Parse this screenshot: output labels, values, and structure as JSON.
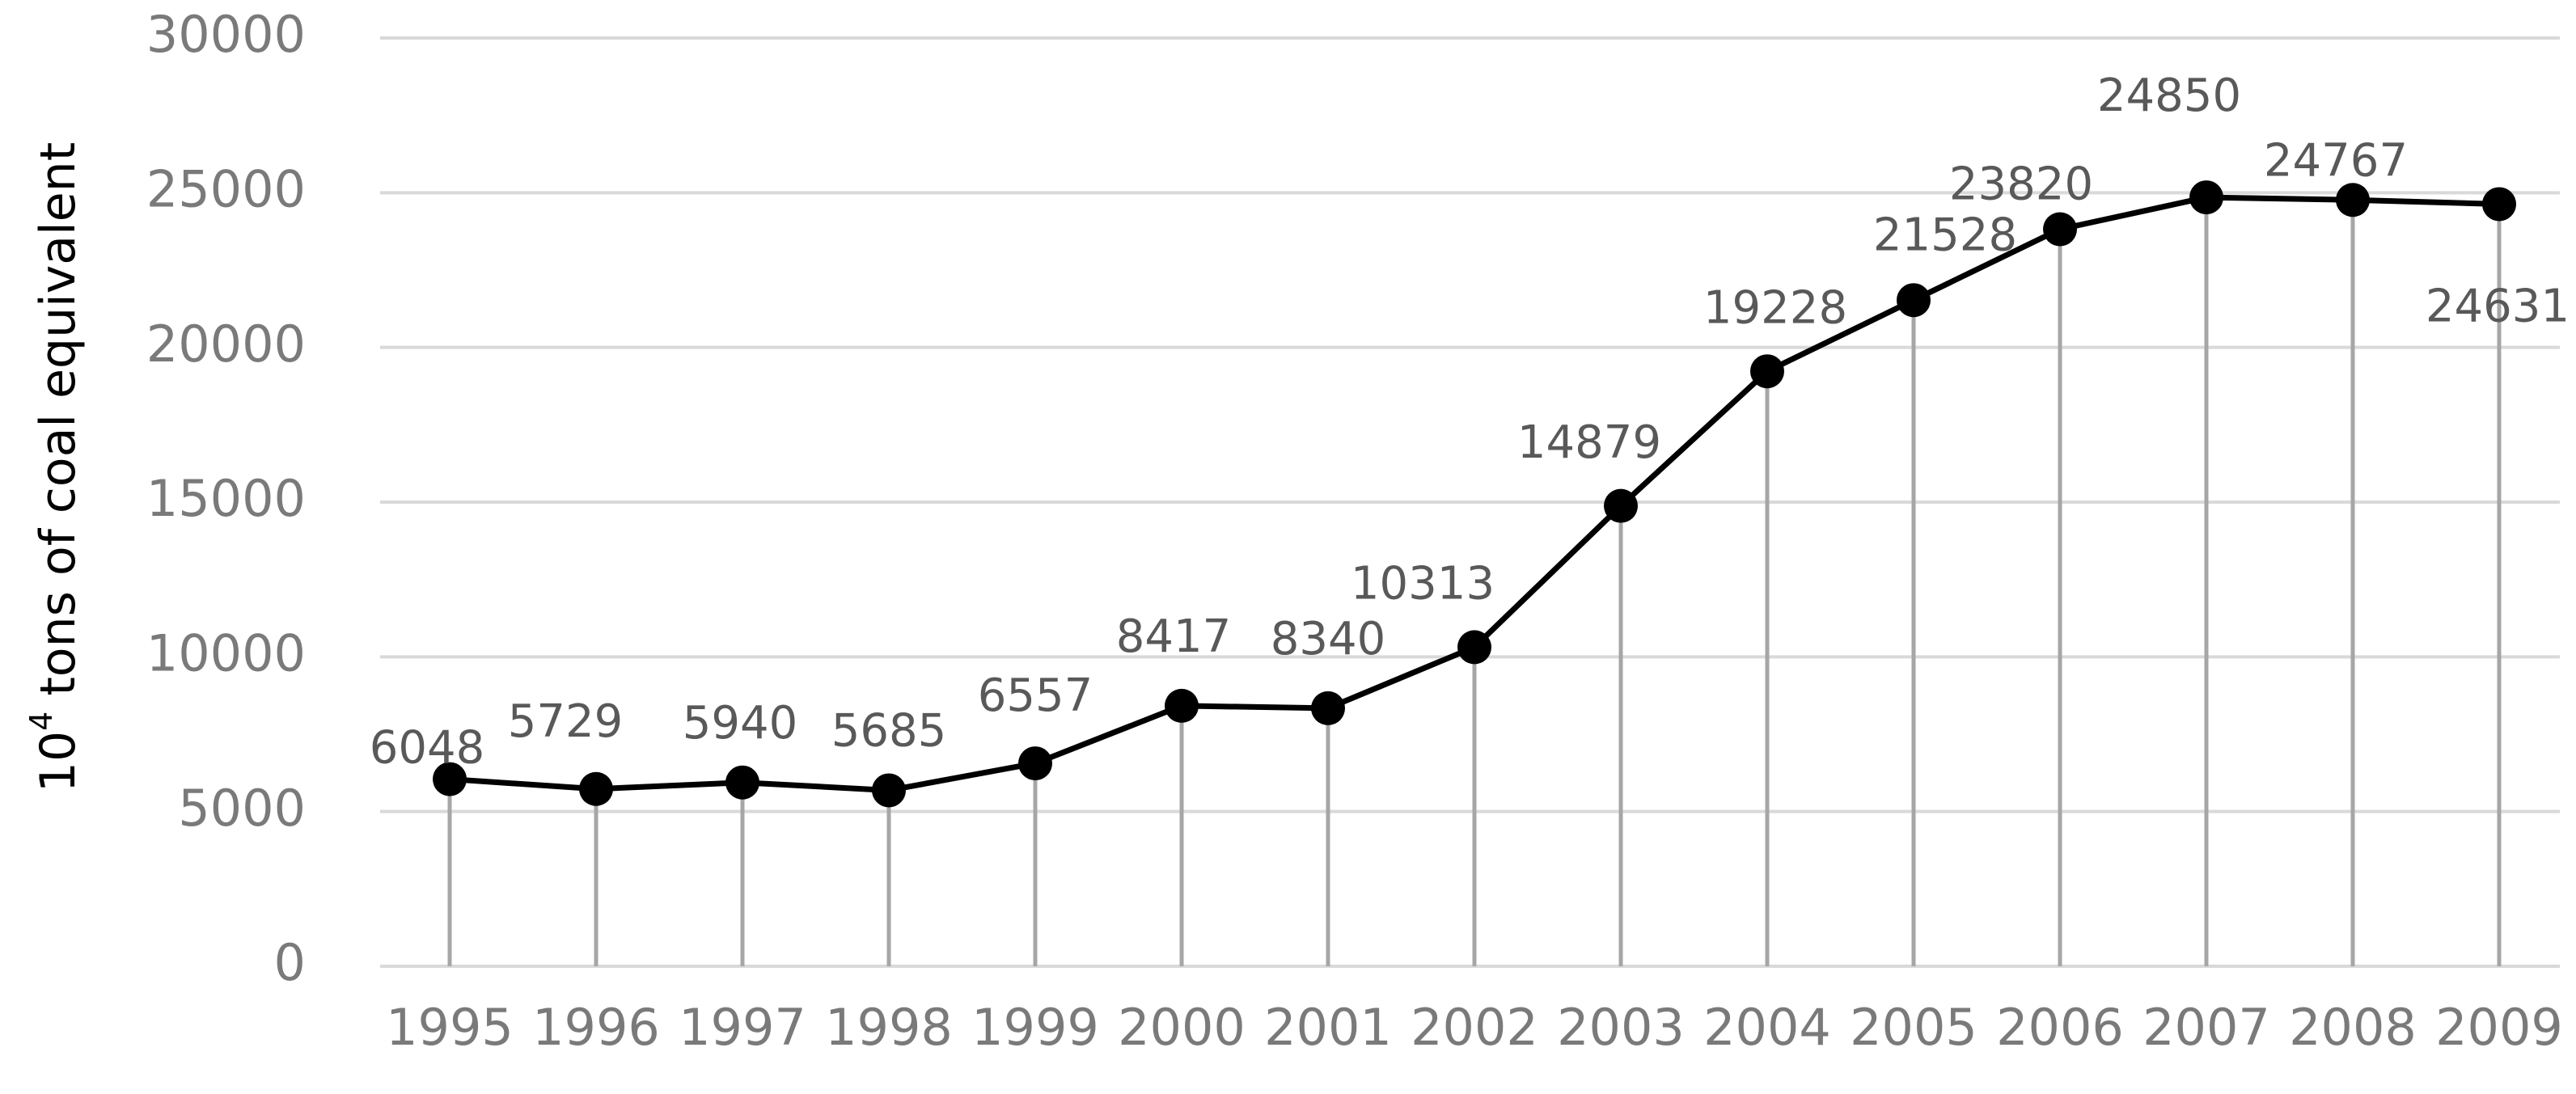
{
  "chart_data": {
    "type": "line",
    "title": "",
    "xlabel": "",
    "ylabel": {
      "base": "10",
      "exponent": "4",
      "rest": " tons of coal equivalent"
    },
    "categories": [
      "1995",
      "1996",
      "1997",
      "1998",
      "1999",
      "2000",
      "2001",
      "2002",
      "2003",
      "2004",
      "2005",
      "2006",
      "2007",
      "2008",
      "2009"
    ],
    "series": [
      {
        "values": [
          6048,
          5729,
          5940,
          5685,
          6557,
          8417,
          8340,
          10313,
          14879,
          19228,
          21528,
          23820,
          24850,
          24767,
          24631
        ]
      }
    ],
    "data_labels": [
      "6048",
      "5729",
      "5940",
      "5685",
      "6557",
      "8417",
      "8340",
      "10313",
      "14879",
      "19228",
      "21528",
      "23820",
      "24850",
      "24767",
      "24631"
    ],
    "ylim": [
      0,
      30000
    ],
    "yticks": [
      0,
      5000,
      10000,
      15000,
      20000,
      25000,
      30000
    ],
    "ytick_labels": [
      "0",
      "5000",
      "10000",
      "15000",
      "20000",
      "25000",
      "30000"
    ],
    "grid": "horizontal",
    "drop_lines": true,
    "markers": "filled circle",
    "legend": "none",
    "colors": {
      "line": "#000000",
      "marker": "#000000",
      "drop_line": "#a6a6a6",
      "gridline": "#d9d9d9",
      "tick_text": "#7a7a7a",
      "data_label_text": "#595959"
    }
  }
}
